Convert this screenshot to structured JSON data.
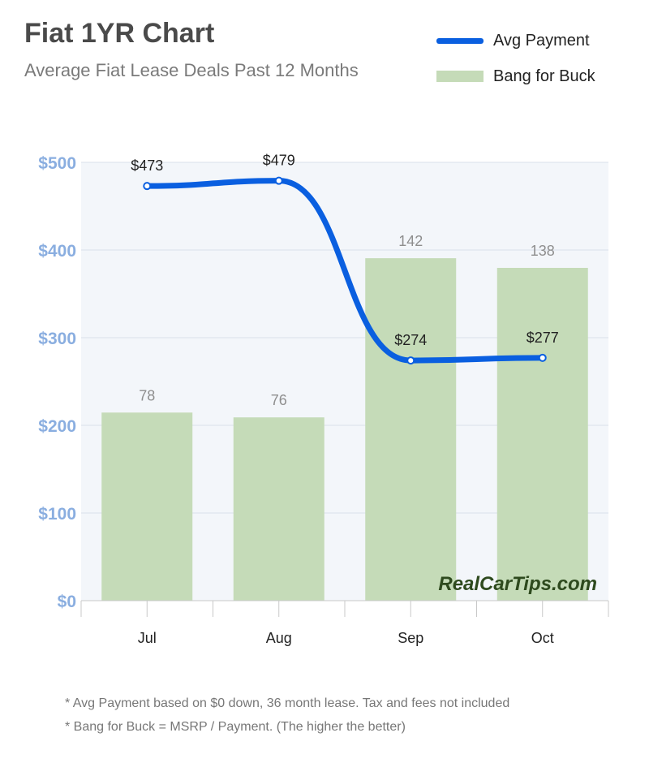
{
  "header": {
    "title": "Fiat 1YR Chart",
    "subtitle": "Average Fiat Lease Deals Past 12 Months"
  },
  "watermark": "RealCarTips.com",
  "footnotes": [
    "* Avg Payment based on $0 down, 36 month lease. Tax and fees not included",
    "* Bang for Buck = MSRP / Payment. (The higher the better)"
  ],
  "chart_data": {
    "type": "bar",
    "categories": [
      "Jul",
      "Aug",
      "Sep",
      "Oct"
    ],
    "series": [
      {
        "name": "Avg Payment",
        "type": "line",
        "values": [
          473,
          479,
          274,
          277
        ],
        "labels": [
          "$473",
          "$479",
          "$274",
          "$277"
        ],
        "color": "#0a5fe0"
      },
      {
        "name": "Bang for Buck",
        "type": "bar",
        "values": [
          78,
          76,
          142,
          138
        ],
        "labels": [
          "78",
          "76",
          "142",
          "138"
        ],
        "color": "#c5dbb8"
      }
    ],
    "y_ticks": [
      "$0",
      "$100",
      "$200",
      "$300",
      "$400",
      "$500"
    ],
    "ylim": [
      0,
      500
    ],
    "legend_position": "top-right",
    "grid": true,
    "plot_background": "#f3f6fa"
  }
}
